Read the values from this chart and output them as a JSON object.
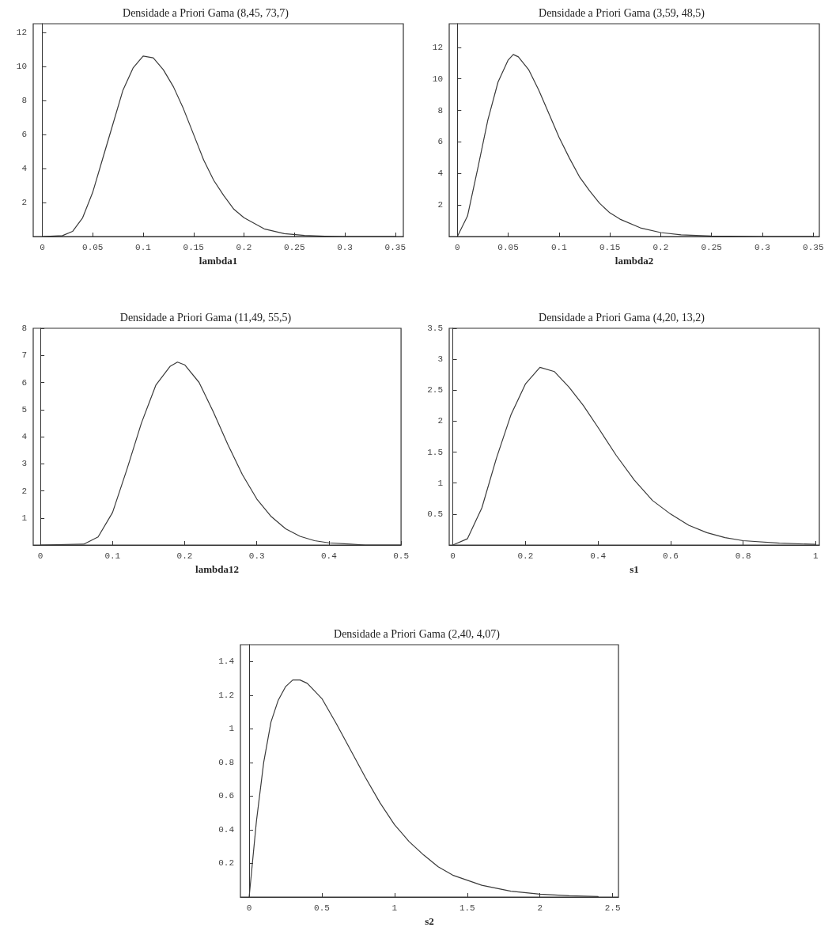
{
  "chart_data": [
    {
      "type": "line",
      "title": "Densidade a Priori Gama (8,45, 73,7)",
      "xlabel": "lambda1",
      "color": "#3a3a3a",
      "marker": "none",
      "line_style": "solid",
      "xlim": [
        -0.009,
        0.358
      ],
      "ylim": [
        0,
        12.5
      ],
      "xticks": [
        0,
        0.05,
        0.1,
        0.15,
        0.2,
        0.25,
        0.3,
        0.35
      ],
      "yticks": [
        2,
        4,
        6,
        8,
        10,
        12
      ],
      "x": [
        0,
        0.02,
        0.03,
        0.04,
        0.05,
        0.06,
        0.07,
        0.08,
        0.09,
        0.1,
        0.11,
        0.12,
        0.13,
        0.14,
        0.15,
        0.16,
        0.17,
        0.18,
        0.19,
        0.2,
        0.22,
        0.24,
        0.26,
        0.28,
        0.3,
        0.35
      ],
      "values": [
        0,
        0.05,
        0.3,
        1.1,
        2.6,
        4.6,
        6.6,
        8.6,
        9.9,
        10.6,
        10.5,
        9.8,
        8.8,
        7.5,
        6.0,
        4.5,
        3.3,
        2.4,
        1.6,
        1.1,
        0.45,
        0.17,
        0.06,
        0.02,
        0,
        0
      ]
    },
    {
      "type": "line",
      "title": "Densidade a Priori Gama (3,59, 48,5)",
      "xlabel": "lambda2",
      "color": "#3a3a3a",
      "marker": "none",
      "line_style": "solid",
      "xlim": [
        -0.008,
        0.356
      ],
      "ylim": [
        0,
        13.5
      ],
      "xticks": [
        0,
        0.05,
        0.1,
        0.15,
        0.2,
        0.25,
        0.3,
        0.35
      ],
      "yticks": [
        2,
        4,
        6,
        8,
        10,
        12
      ],
      "x": [
        0,
        0.01,
        0.02,
        0.03,
        0.04,
        0.05,
        0.055,
        0.06,
        0.07,
        0.08,
        0.09,
        0.1,
        0.11,
        0.12,
        0.13,
        0.14,
        0.15,
        0.16,
        0.18,
        0.2,
        0.22,
        0.25,
        0.3,
        0.35
      ],
      "values": [
        0,
        1.3,
        4.3,
        7.4,
        9.8,
        11.2,
        11.55,
        11.4,
        10.6,
        9.3,
        7.8,
        6.3,
        5.0,
        3.8,
        2.9,
        2.1,
        1.5,
        1.1,
        0.55,
        0.25,
        0.11,
        0.03,
        0,
        0
      ]
    },
    {
      "type": "line",
      "title": "Densidade a Priori Gama (11,49, 55,5)",
      "xlabel": "lambda12",
      "color": "#3a3a3a",
      "marker": "none",
      "line_style": "solid",
      "xlim": [
        -0.01,
        0.5
      ],
      "ylim": [
        0,
        8
      ],
      "xticks": [
        0,
        0.1,
        0.2,
        0.3,
        0.4,
        0.5
      ],
      "yticks": [
        1,
        2,
        3,
        4,
        5,
        6,
        7,
        8
      ],
      "x": [
        0,
        0.06,
        0.08,
        0.1,
        0.12,
        0.14,
        0.16,
        0.18,
        0.19,
        0.2,
        0.22,
        0.24,
        0.26,
        0.28,
        0.3,
        0.32,
        0.34,
        0.36,
        0.38,
        0.4,
        0.43,
        0.45,
        0.5
      ],
      "values": [
        0,
        0.03,
        0.3,
        1.2,
        2.8,
        4.5,
        5.9,
        6.6,
        6.75,
        6.65,
        6.0,
        4.9,
        3.7,
        2.6,
        1.7,
        1.05,
        0.6,
        0.32,
        0.16,
        0.08,
        0.03,
        0,
        0
      ]
    },
    {
      "type": "line",
      "title": "Densidade a Priori Gama (4,20, 13,2)",
      "xlabel": "s1",
      "color": "#3a3a3a",
      "marker": "none",
      "line_style": "solid",
      "xlim": [
        -0.01,
        1.01
      ],
      "ylim": [
        0,
        3.5
      ],
      "xticks": [
        0,
        0.2,
        0.4,
        0.6,
        0.8,
        1
      ],
      "yticks": [
        0.5,
        1,
        1.5,
        2,
        2.5,
        3,
        3.5
      ],
      "x": [
        0,
        0.04,
        0.08,
        0.12,
        0.16,
        0.2,
        0.24,
        0.28,
        0.32,
        0.36,
        0.4,
        0.45,
        0.5,
        0.55,
        0.6,
        0.65,
        0.7,
        0.75,
        0.8,
        0.9,
        1.0
      ],
      "values": [
        0,
        0.1,
        0.6,
        1.4,
        2.1,
        2.6,
        2.87,
        2.8,
        2.55,
        2.25,
        1.9,
        1.45,
        1.05,
        0.72,
        0.5,
        0.32,
        0.2,
        0.12,
        0.07,
        0.03,
        0.01
      ]
    },
    {
      "type": "line",
      "title": "Densidade a Priori Gama (2,40, 4,07)",
      "xlabel": "s2",
      "color": "#3a3a3a",
      "marker": "none",
      "line_style": "solid",
      "xlim": [
        -0.06,
        2.54
      ],
      "ylim": [
        0,
        1.5
      ],
      "xticks": [
        0,
        0.5,
        1,
        1.5,
        2,
        2.5
      ],
      "yticks": [
        0.2,
        0.4,
        0.6,
        0.8,
        1,
        1.2,
        1.4
      ],
      "x": [
        0,
        0.05,
        0.1,
        0.15,
        0.2,
        0.25,
        0.3,
        0.35,
        0.4,
        0.5,
        0.6,
        0.7,
        0.8,
        0.9,
        1.0,
        1.1,
        1.2,
        1.3,
        1.4,
        1.6,
        1.8,
        2.0,
        2.2,
        2.4
      ],
      "values": [
        0,
        0.45,
        0.8,
        1.04,
        1.17,
        1.25,
        1.29,
        1.29,
        1.27,
        1.18,
        1.03,
        0.87,
        0.71,
        0.56,
        0.43,
        0.33,
        0.25,
        0.18,
        0.13,
        0.07,
        0.035,
        0.017,
        0.008,
        0.003
      ]
    }
  ]
}
